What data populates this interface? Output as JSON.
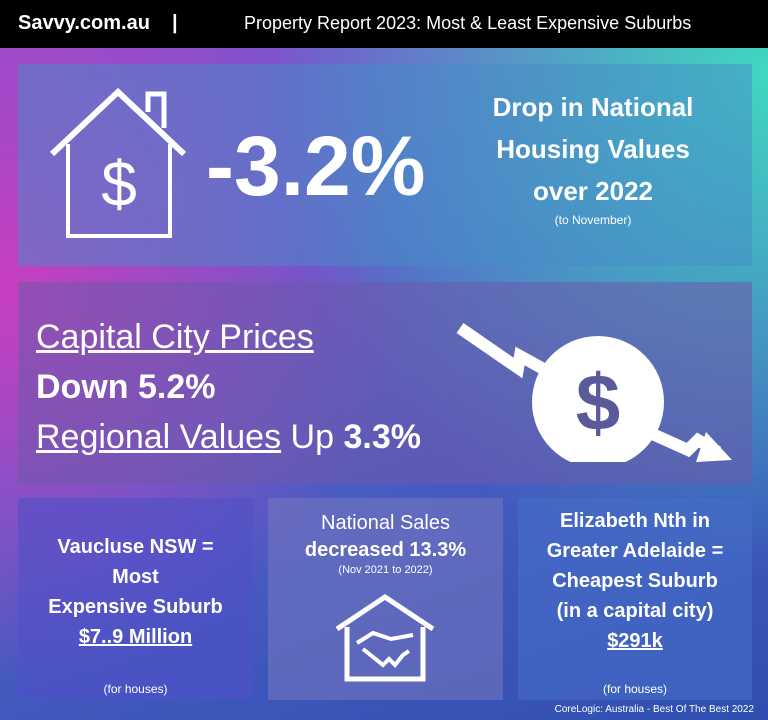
{
  "header": {
    "brand": "Savvy.com.au",
    "separator": "|",
    "title": "Property Report 2023: Most & Least Expensive Suburbs"
  },
  "headline": {
    "value": "-3.2%",
    "lines": [
      "Drop in National",
      "Housing Values",
      "over 2022"
    ],
    "note": "(to November)"
  },
  "prices": {
    "capital_label": "Capital City Prices",
    "capital_change": "Down 5.2%",
    "regional_label": "Regional Values",
    "regional_direction": "Up",
    "regional_value": "3.3%"
  },
  "cards": [
    {
      "lines": [
        "Vaucluse NSW =",
        "Most",
        "Expensive Suburb"
      ],
      "value": "$7..9 Million",
      "note": "(for houses)"
    },
    {
      "lines": [
        "National Sales",
        "decreased 13.3%"
      ],
      "note": "(Nov 2021 to 2022)"
    },
    {
      "lines": [
        "Elizabeth Nth in",
        "Greater Adelaide =",
        "Cheapest Suburb",
        "(in a capital city)"
      ],
      "value": "$291k",
      "note": "(for houses)"
    }
  ],
  "footer": {
    "source": "CoreLogic: Australia - Best Of The Best 2022"
  }
}
